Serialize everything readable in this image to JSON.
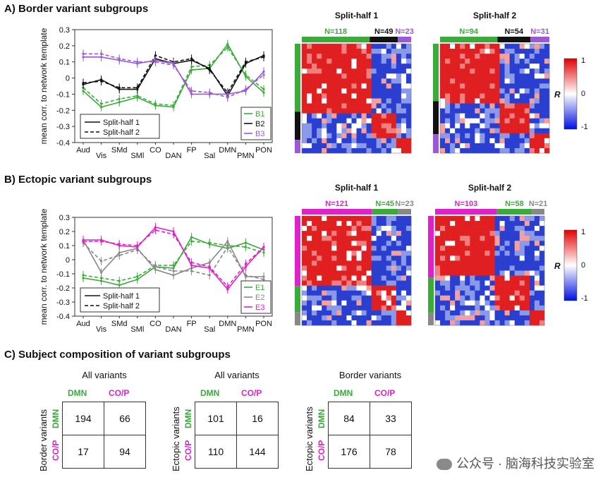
{
  "panel_a_title": "A) Border variant subgroups",
  "panel_b_title": "B) Ectopic variant subgroups",
  "panel_c_title": "C) Subject composition of variant subgroups",
  "colors": {
    "green": "#3aaa3a",
    "black": "#111111",
    "purple": "#9b59d6",
    "magenta": "#e020c8",
    "gray": "#888888"
  },
  "chart_data": [
    {
      "id": "A-lines",
      "type": "line",
      "ylabel": "mean corr. to network template",
      "ylim": [
        -0.4,
        0.3
      ],
      "yticks": [
        "0.3",
        "0.2",
        "0.1",
        "0",
        "-0.1",
        "-0.2",
        "-0.3",
        "-0.4"
      ],
      "categories": [
        "Aud",
        "Vis",
        "SMd",
        "SMl",
        "CO",
        "DAN",
        "FP",
        "Sal",
        "DMN",
        "PMN",
        "PON"
      ],
      "legend_styles": [
        "Split-half 1",
        "Split-half 2"
      ],
      "series": [
        {
          "name": "B1",
          "color": "#3aaa3a",
          "half1": [
            -0.08,
            -0.18,
            -0.15,
            -0.12,
            -0.17,
            -0.18,
            0.05,
            0.06,
            0.21,
            0.01,
            -0.09
          ],
          "half2": [
            -0.06,
            -0.16,
            -0.13,
            -0.11,
            -0.16,
            -0.17,
            0.07,
            0.08,
            0.19,
            0.02,
            -0.07
          ]
        },
        {
          "name": "B2",
          "color": "#111111",
          "half1": [
            -0.04,
            -0.01,
            -0.07,
            -0.07,
            0.12,
            0.09,
            0.11,
            0.06,
            -0.11,
            0.09,
            0.14
          ],
          "half2": [
            -0.03,
            -0.02,
            -0.06,
            -0.06,
            0.14,
            0.1,
            0.12,
            0.05,
            -0.09,
            0.1,
            0.13
          ]
        },
        {
          "name": "B3",
          "color": "#9b59d6",
          "half1": [
            0.13,
            0.13,
            0.11,
            0.09,
            0.11,
            0.09,
            -0.1,
            -0.1,
            -0.1,
            -0.08,
            0.04
          ],
          "half2": [
            0.15,
            0.15,
            0.12,
            0.1,
            0.1,
            0.08,
            -0.08,
            -0.09,
            -0.12,
            -0.07,
            0.02
          ]
        }
      ]
    },
    {
      "id": "A-matrices",
      "type": "heatmap",
      "colorbar_label": "R",
      "colorbar_ticks": [
        "1",
        "0",
        "-1"
      ],
      "matrices": [
        {
          "title": "Split-half 1",
          "groups": [
            {
              "label": "N=118",
              "n": 118,
              "color": "#3aaa3a"
            },
            {
              "label": "N=49",
              "n": 49,
              "color": "#111111"
            },
            {
              "label": "N=23",
              "n": 23,
              "color": "#9b59d6"
            }
          ]
        },
        {
          "title": "Split-half 2",
          "groups": [
            {
              "label": "N=94",
              "n": 94,
              "color": "#3aaa3a"
            },
            {
              "label": "N=54",
              "n": 54,
              "color": "#111111"
            },
            {
              "label": "N=31",
              "n": 31,
              "color": "#9b59d6"
            }
          ]
        }
      ]
    },
    {
      "id": "B-lines",
      "type": "line",
      "ylabel": "mean corr. to network template",
      "ylim": [
        -0.4,
        0.3
      ],
      "yticks": [
        "0.3",
        "0.2",
        "0.1",
        "0",
        "-0.1",
        "-0.2",
        "-0.3",
        "-0.4"
      ],
      "categories": [
        "Aud",
        "Vis",
        "SMd",
        "SMl",
        "CO",
        "DAN",
        "FP",
        "Sal",
        "DMN",
        "PMN",
        "PON"
      ],
      "legend_styles": [
        "Split-half 1",
        "Split-half 2"
      ],
      "series": [
        {
          "name": "E1",
          "color": "#3aaa3a",
          "half1": [
            -0.13,
            -0.15,
            -0.18,
            -0.14,
            -0.05,
            -0.06,
            0.16,
            0.11,
            0.08,
            0.12,
            0.07
          ],
          "half2": [
            -0.11,
            -0.13,
            -0.15,
            -0.12,
            -0.04,
            -0.04,
            0.13,
            0.12,
            0.1,
            0.09,
            0.05
          ]
        },
        {
          "name": "E2",
          "color": "#888888",
          "half1": [
            0.14,
            -0.09,
            0.05,
            0.08,
            -0.07,
            -0.11,
            -0.06,
            -0.02,
            0.13,
            -0.12,
            -0.12
          ],
          "half2": [
            0.12,
            -0.01,
            0.03,
            0.07,
            -0.05,
            -0.08,
            -0.08,
            -0.11,
            0.09,
            -0.11,
            -0.14
          ]
        },
        {
          "name": "E3",
          "color": "#e020c8",
          "half1": [
            0.14,
            0.14,
            0.1,
            0.09,
            0.23,
            0.2,
            -0.04,
            -0.06,
            -0.21,
            -0.05,
            0.09
          ],
          "half2": [
            0.13,
            0.13,
            0.11,
            0.1,
            0.21,
            0.18,
            -0.02,
            -0.05,
            -0.19,
            -0.03,
            0.09
          ]
        }
      ]
    },
    {
      "id": "B-matrices",
      "type": "heatmap",
      "colorbar_label": "R",
      "colorbar_ticks": [
        "1",
        "0",
        "-1"
      ],
      "matrices": [
        {
          "title": "Split-half 1",
          "groups": [
            {
              "label": "N=121",
              "n": 121,
              "color": "#e020c8"
            },
            {
              "label": "N=45",
              "n": 45,
              "color": "#3aaa3a"
            },
            {
              "label": "N=23",
              "n": 23,
              "color": "#888888"
            }
          ]
        },
        {
          "title": "Split-half 2",
          "groups": [
            {
              "label": "N=103",
              "n": 103,
              "color": "#e020c8"
            },
            {
              "label": "N=58",
              "n": 58,
              "color": "#3aaa3a"
            },
            {
              "label": "N=21",
              "n": 21,
              "color": "#888888"
            }
          ]
        }
      ]
    },
    {
      "id": "C-tables",
      "type": "table",
      "tables": [
        {
          "title": "All variants",
          "row_axis": "Border variants",
          "row_heads": [
            "DMN",
            "CO/P"
          ],
          "col_heads": [
            "DMN",
            "CO/P"
          ],
          "values": [
            [
              "194",
              "66"
            ],
            [
              "17",
              "94"
            ]
          ]
        },
        {
          "title": "All variants",
          "row_axis": "Ectopic variants",
          "row_heads": [
            "DMN",
            "CO/P"
          ],
          "col_heads": [
            "DMN",
            "CO/P"
          ],
          "values": [
            [
              "101",
              "16"
            ],
            [
              "110",
              "144"
            ]
          ]
        },
        {
          "title": "Border variants",
          "row_axis": "Ectopic variants",
          "row_heads": [
            "DMN",
            "CO/P"
          ],
          "col_heads": [
            "DMN",
            "CO/P"
          ],
          "values": [
            [
              "84",
              "33"
            ],
            [
              "176",
              "78"
            ]
          ]
        }
      ]
    }
  ],
  "watermark": "公众号 · 脑海科技实验室"
}
